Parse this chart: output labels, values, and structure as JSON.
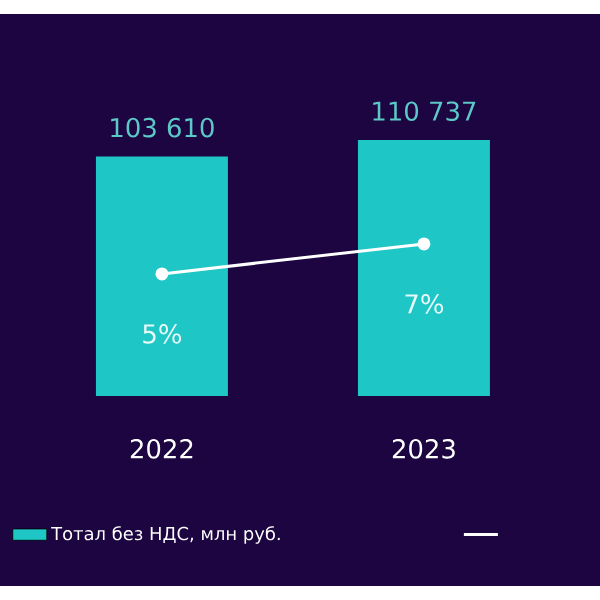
{
  "chart_data": {
    "type": "bar",
    "categories": [
      "2022",
      "2023"
    ],
    "legend": "bottom",
    "tick_labels": "x",
    "marker": "circle",
    "series": [
      {
        "name": "Тотал без НДС, млн руб.",
        "color": "#1fc6c6",
        "values": [
          103610,
          110737
        ],
        "value_labels": [
          "103 610",
          "110 737"
        ]
      },
      {
        "type": "line",
        "axis": "y2",
        "color": "#ffffff",
        "values": [
          5,
          7
        ],
        "value_labels": [
          "5%",
          "7%"
        ]
      }
    ]
  }
}
